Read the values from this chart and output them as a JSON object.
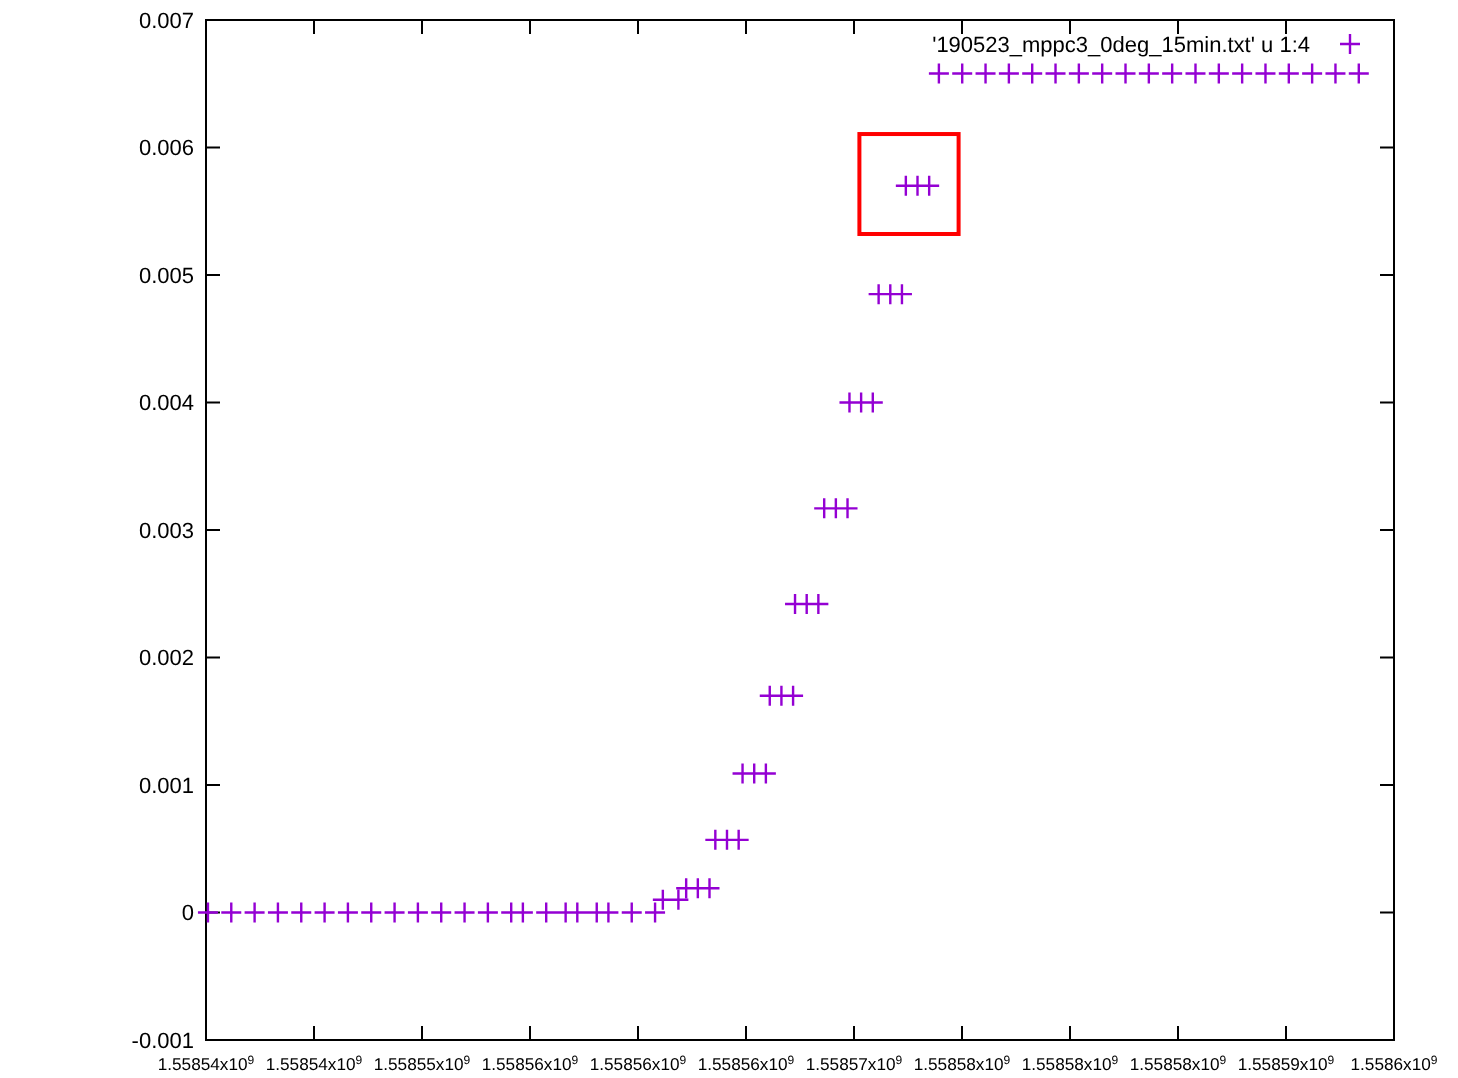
{
  "chart_data": {
    "type": "scatter",
    "legend": "top right",
    "marker": "cross",
    "grid": false,
    "xlim": [
      1558540000,
      1558595000
    ],
    "xticks": [
      {
        "value": 1558540000,
        "label": "1.55854x10$^{9}$"
      },
      {
        "value": 1558545000,
        "label": "1.55854x10$^{9}$"
      },
      {
        "value": 1558550000,
        "label": "1.55855x10$^{9}$"
      },
      {
        "value": 1558555000,
        "label": "1.55856x10$^{9}$"
      },
      {
        "value": 1558560000,
        "label": "1.55856x10$^{9}$"
      },
      {
        "value": 1558565000,
        "label": "1.55856x10$^{9}$"
      },
      {
        "value": 1558570000,
        "label": "1.55857x10$^{9}$"
      },
      {
        "value": 1558575000,
        "label": "1.55858x10$^{9}$"
      },
      {
        "value": 1558580000,
        "label": "1.55858x10$^{9}$"
      },
      {
        "value": 1558585000,
        "label": "1.55858x10$^{9}$"
      },
      {
        "value": 1558590000,
        "label": "1.55859x10$^{9}$"
      },
      {
        "value": 1558595000,
        "label": "1.5586x10$^{9}$"
      }
    ],
    "ylim": [
      -0.001,
      0.007
    ],
    "yticks": [
      -0.001,
      {
        "value": 0,
        "label": "0"
      },
      0.001,
      0.002,
      0.003,
      0.004,
      0.005,
      0.006,
      0.007
    ],
    "series": [
      {
        "name": "'190523_mppc3_0deg_15min.txt' u 1:4",
        "color": "#9400d3",
        "x": [
          1558540090,
          1558541170,
          1558542250,
          1558543330,
          1558544410,
          1558545490,
          1558546570,
          1558547650,
          1558548730,
          1558549810,
          1558550890,
          1558551970,
          1558553050,
          1558554130,
          1558554670,
          1558555750,
          1558556650,
          1558557190,
          1558558090,
          1558558630,
          1558559710,
          1558560790,
          1558561150,
          1558561870,
          1558562230,
          1558562770,
          1558563310,
          1558563580,
          1558564120,
          1558564660,
          1558564840,
          1558565380,
          1558565920,
          1558566100,
          1558566640,
          1558567180,
          1558567270,
          1558567810,
          1558568350,
          1558568620,
          1558569160,
          1558569700,
          1558569790,
          1558570330,
          1558570870,
          1558571140,
          1558571680,
          1558572220,
          1558572400,
          1558572940,
          1558573480,
          1558573930,
          1558575010,
          1558576090,
          1558577170,
          1558578250,
          1558579330,
          1558580410,
          1558581490,
          1558582570,
          1558583650,
          1558584730,
          1558585810,
          1558586890,
          1558587970,
          1558589050,
          1558590130,
          1558591210,
          1558592290,
          1558593370
        ],
        "values": [
          0,
          0,
          0,
          0,
          0,
          0,
          0,
          0,
          0,
          0,
          0,
          0,
          0,
          0,
          0,
          0,
          0,
          0,
          0,
          0,
          0,
          0,
          0.0001,
          0.0001,
          0.00019,
          0.00019,
          0.00019,
          0.00057,
          0.00057,
          0.00057,
          0.00109,
          0.00109,
          0.00109,
          0.0017,
          0.0017,
          0.0017,
          0.00242,
          0.00242,
          0.00242,
          0.00317,
          0.00317,
          0.00317,
          0.004,
          0.004,
          0.004,
          0.00485,
          0.00485,
          0.00485,
          0.0057,
          0.0057,
          0.0057,
          0.00658,
          0.00658,
          0.00658,
          0.00658,
          0.00658,
          0.00658,
          0.00658,
          0.00658,
          0.00658,
          0.00658,
          0.00658,
          0.00658,
          0.00658,
          0.00658,
          0.00658,
          0.00658,
          0.00658,
          0.00658,
          0.00658
        ]
      }
    ]
  }
}
